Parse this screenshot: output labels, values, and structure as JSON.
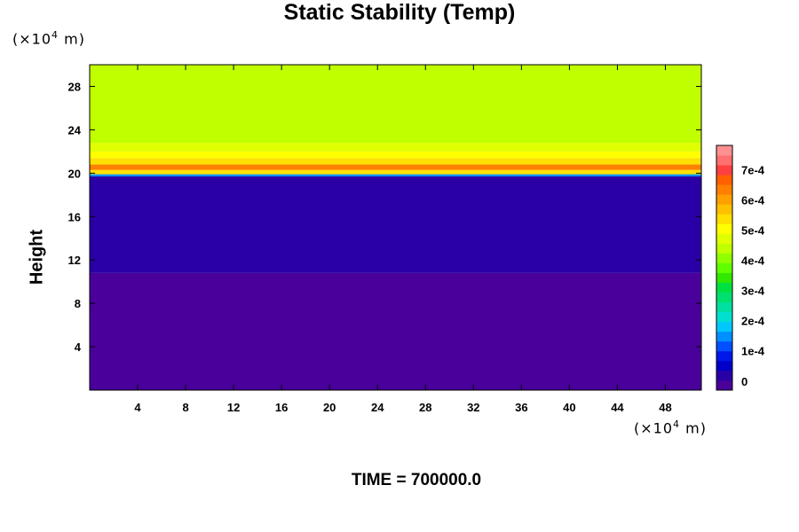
{
  "chart_data": {
    "type": "heatmap",
    "title": "Static Stability (Temp)",
    "ylabel": "Height",
    "x_unit": {
      "pre": "(×10",
      "exp": "4",
      "post": " m)"
    },
    "y_unit": {
      "pre": "(×10",
      "exp": "4",
      "post": " m)"
    },
    "x_ticks": [
      "4",
      "8",
      "12",
      "16",
      "20",
      "24",
      "28",
      "32",
      "36",
      "40",
      "44",
      "48"
    ],
    "y_ticks": [
      "4",
      "8",
      "12",
      "16",
      "20",
      "24",
      "28"
    ],
    "xlim": [
      0,
      51
    ],
    "ylim": [
      0,
      30
    ],
    "colorbar": {
      "ticks": [
        "0",
        "1e-4",
        "2e-4",
        "3e-4",
        "4e-4",
        "5e-4",
        "6e-4",
        "7e-4"
      ],
      "range": [
        -3e-05,
        0.00078
      ]
    },
    "bands": [
      {
        "from": 0,
        "to": 10.8,
        "value": 0.0
      },
      {
        "from": 10.8,
        "to": 19.7,
        "value": 3e-05
      },
      {
        "from": 19.7,
        "to": 19.9,
        "value": 0.00015
      },
      {
        "from": 19.9,
        "to": 20.3,
        "value": 0.00055
      },
      {
        "from": 20.3,
        "to": 20.8,
        "value": 0.00065
      },
      {
        "from": 20.8,
        "to": 21.4,
        "value": 0.00055
      },
      {
        "from": 21.4,
        "to": 22.0,
        "value": 0.0005
      },
      {
        "from": 22.0,
        "to": 22.8,
        "value": 0.00047
      },
      {
        "from": 22.8,
        "to": 30.0,
        "value": 0.00043
      }
    ]
  },
  "footer": {
    "time_label": "TIME = 700000.0"
  },
  "colors": {
    "palette": [
      "#4a009a",
      "#2a00a6",
      "#0000c8",
      "#0018e8",
      "#0050ff",
      "#0090ff",
      "#00c8ff",
      "#00e0d0",
      "#00e0a0",
      "#00e070",
      "#00e040",
      "#30e800",
      "#60ff00",
      "#90ff00",
      "#c0ff00",
      "#e0ff00",
      "#ffff00",
      "#ffe000",
      "#ffc000",
      "#ffa000",
      "#ff8000",
      "#ff6000",
      "#ff4040",
      "#ff7070",
      "#ff9090"
    ]
  }
}
